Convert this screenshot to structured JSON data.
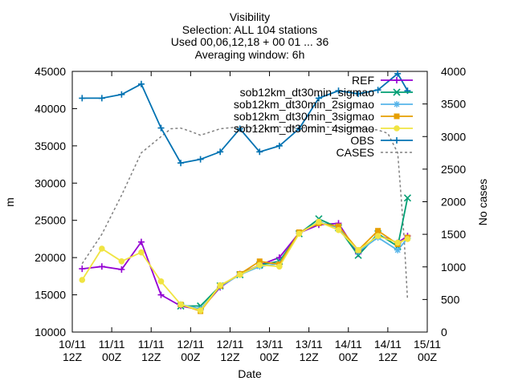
{
  "chart_data": {
    "type": "line",
    "title_lines": [
      "Visibility",
      "Selection: ALL     104 stations",
      "Used 00,06,12,18 + 00 01 ... 36",
      "Averaging window:  6h"
    ],
    "xlabel": "Date",
    "ylabel": "m",
    "y2label": "No cases",
    "x_range": [
      0,
      108
    ],
    "ylim": [
      10000,
      45000
    ],
    "y2lim": [
      0,
      4000
    ],
    "x_ticks": [
      {
        "x": 0,
        "l1": "10/11",
        "l2": "12Z"
      },
      {
        "x": 12,
        "l1": "11/11",
        "l2": "00Z"
      },
      {
        "x": 24,
        "l1": "11/11",
        "l2": "12Z"
      },
      {
        "x": 36,
        "l1": "12/11",
        "l2": "00Z"
      },
      {
        "x": 48,
        "l1": "12/11",
        "l2": "12Z"
      },
      {
        "x": 60,
        "l1": "13/11",
        "l2": "00Z"
      },
      {
        "x": 72,
        "l1": "13/11",
        "l2": "12Z"
      },
      {
        "x": 84,
        "l1": "14/11",
        "l2": "00Z"
      },
      {
        "x": 96,
        "l1": "14/11",
        "l2": "12Z"
      },
      {
        "x": 108,
        "l1": "15/11",
        "l2": "00Z"
      }
    ],
    "y_ticks": [
      10000,
      15000,
      20000,
      25000,
      30000,
      35000,
      40000,
      45000
    ],
    "y2_ticks": [
      0,
      500,
      1000,
      1500,
      2000,
      2500,
      3000,
      3500,
      4000
    ],
    "x": [
      3,
      9,
      15,
      21,
      27,
      33,
      39,
      45,
      51,
      57,
      63,
      69,
      75,
      81,
      87,
      93,
      99,
      102
    ],
    "legend_position": "top-right",
    "series": [
      {
        "name": "REF",
        "color": "#9400d3",
        "marker": "plus",
        "axis": "y1",
        "values": [
          18500,
          18800,
          18400,
          22100,
          15000,
          13500,
          13000,
          16000,
          17800,
          19000,
          20000,
          23300,
          24400,
          24600,
          20500,
          23000,
          22000,
          22900
        ]
      },
      {
        "name": "sob12km_dt30min_sigmao",
        "color": "#009e73",
        "marker": "x",
        "axis": "y1",
        "values": [
          null,
          null,
          null,
          null,
          null,
          13500,
          13500,
          16200,
          17700,
          19000,
          19500,
          23200,
          25200,
          24000,
          20300,
          23200,
          21500,
          28000
        ]
      },
      {
        "name": "sob12km_dt30min_2sigmao",
        "color": "#56b4e9",
        "marker": "star",
        "axis": "y1",
        "values": [
          null,
          null,
          null,
          null,
          null,
          13700,
          13100,
          16100,
          17700,
          18800,
          19200,
          23300,
          24800,
          24000,
          20800,
          22700,
          21000,
          22600
        ]
      },
      {
        "name": "sob12km_dt30min_3sigmao",
        "color": "#e69f00",
        "marker": "box",
        "axis": "y1",
        "values": [
          null,
          null,
          null,
          null,
          null,
          13700,
          12800,
          16200,
          17800,
          19500,
          19100,
          23400,
          24600,
          24200,
          21000,
          23600,
          21800,
          22700
        ]
      },
      {
        "name": "sob12km_dt30min_4sigmao",
        "color": "#f0e442",
        "marker": "dot",
        "axis": "y1",
        "values": [
          17000,
          21200,
          19500,
          20700,
          16800,
          13700,
          12900,
          16300,
          17700,
          19000,
          18800,
          23200,
          24800,
          23700,
          21000,
          22900,
          22000,
          22500
        ]
      },
      {
        "name": "OBS",
        "color": "#0072b2",
        "marker": "plus",
        "axis": "y1",
        "values": [
          41400,
          41400,
          41900,
          43300,
          37400,
          32700,
          33200,
          34200,
          37300,
          34200,
          35000,
          37300,
          41400,
          42400,
          42000,
          42500,
          44700,
          42400
        ]
      },
      {
        "name": "CASES",
        "color": "#808080",
        "marker": "none",
        "dash": true,
        "axis": "y2",
        "x": [
          3,
          9,
          15,
          21,
          27,
          30,
          33,
          36,
          39,
          45,
          51,
          57,
          63,
          69,
          75,
          81,
          87,
          93,
          96,
          99,
          100,
          101,
          102
        ],
        "values": [
          1050,
          1500,
          2100,
          2750,
          3000,
          3120,
          3130,
          3080,
          3020,
          3120,
          3150,
          3120,
          3150,
          3130,
          3150,
          3140,
          3130,
          3100,
          3050,
          2750,
          2100,
          1400,
          500
        ]
      }
    ]
  }
}
